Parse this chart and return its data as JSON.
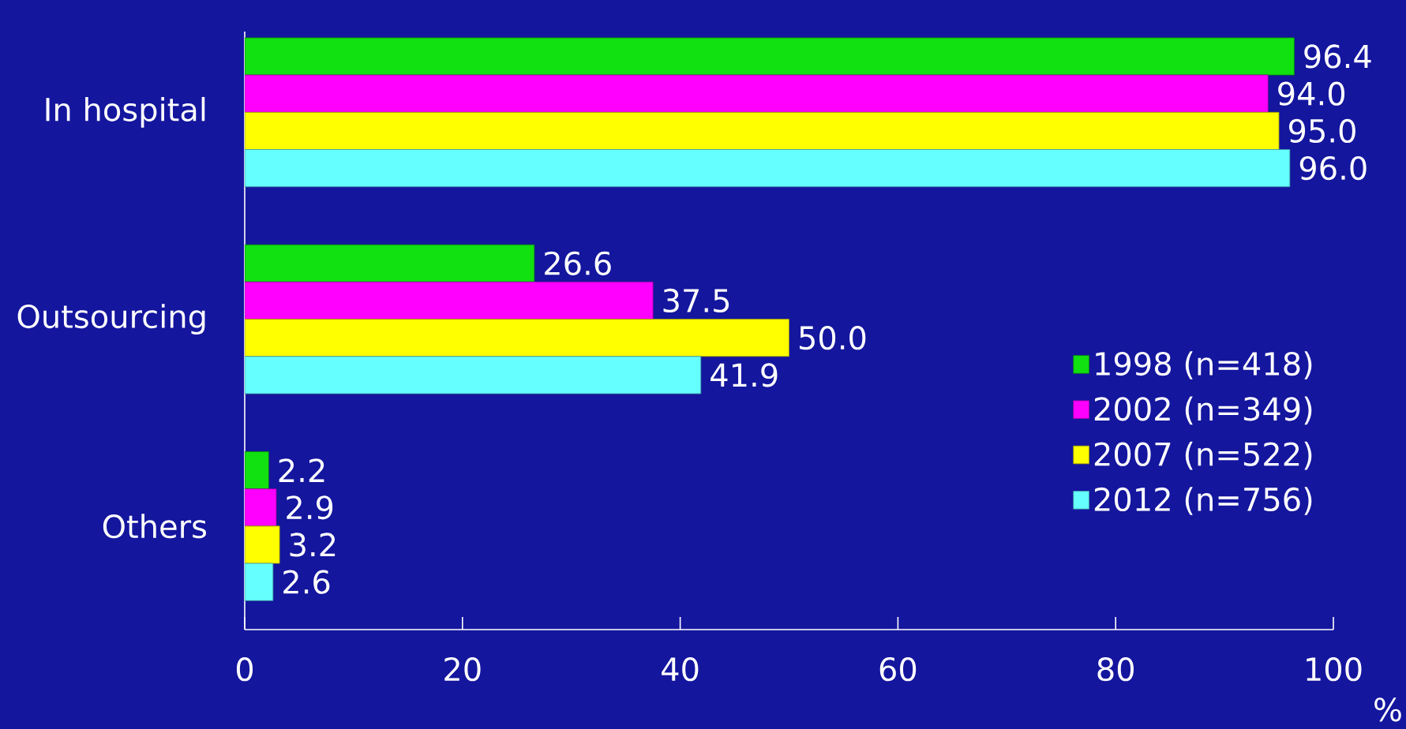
{
  "chart_data": {
    "type": "bar",
    "orientation": "horizontal",
    "categories": [
      "In hospital",
      "Outsourcing",
      "Others"
    ],
    "series": [
      {
        "name": "1998 (n=418)",
        "color": "#11e011",
        "values": [
          96.4,
          26.6,
          2.2
        ],
        "value_labels": [
          "96.4",
          "26.6",
          "2.2"
        ]
      },
      {
        "name": "2002 (n=349)",
        "color": "#ff00ff",
        "values": [
          94.0,
          37.5,
          2.9
        ],
        "value_labels": [
          "94.0",
          "37.5",
          "2.9"
        ]
      },
      {
        "name": "2007 (n=522)",
        "color": "#ffff00",
        "values": [
          95.0,
          50.0,
          3.2
        ],
        "value_labels": [
          "95.0",
          "50.0",
          "3.2"
        ]
      },
      {
        "name": "2012 (n=756)",
        "color": "#66ffff",
        "values": [
          96.0,
          41.9,
          2.6
        ],
        "value_labels": [
          "96.0",
          "41.9",
          "2.6"
        ]
      }
    ],
    "xlabel": "%",
    "xlim": [
      0,
      100
    ],
    "xticks": [
      0,
      20,
      40,
      60,
      80,
      100
    ],
    "legend": "right",
    "grid": false
  }
}
